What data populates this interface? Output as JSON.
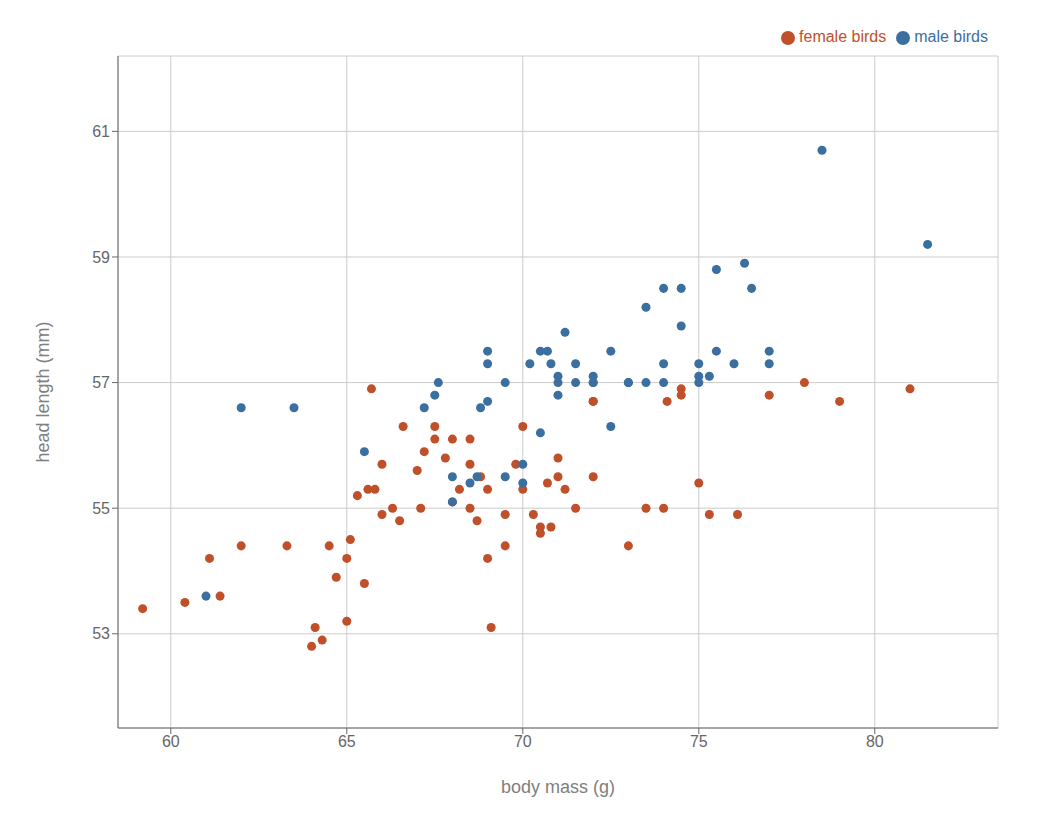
{
  "chart_data": {
    "type": "scatter",
    "xlabel": "body mass (g)",
    "ylabel": "head length (mm)",
    "series": [
      {
        "name": "female birds",
        "color": "#C0502A",
        "x": [
          59.2,
          60.4,
          61.1,
          61.4,
          62.0,
          63.3,
          64.0,
          64.1,
          64.3,
          64.5,
          64.7,
          65.0,
          65.0,
          65.1,
          65.3,
          65.5,
          65.6,
          65.7,
          65.8,
          66.0,
          66.0,
          66.3,
          66.5,
          66.6,
          67.0,
          67.1,
          67.2,
          67.5,
          67.5,
          67.8,
          68.0,
          68.0,
          68.2,
          68.5,
          68.5,
          68.5,
          68.7,
          68.8,
          69.0,
          69.0,
          69.1,
          69.5,
          69.5,
          69.8,
          70.0,
          70.0,
          70.3,
          70.5,
          70.5,
          70.7,
          70.8,
          71.0,
          71.0,
          71.2,
          71.5,
          72.0,
          72.0,
          72.0,
          73.0,
          73.5,
          74.0,
          74.1,
          74.5,
          74.5,
          75.0,
          75.3,
          76.1,
          77.0,
          78.0,
          79.0,
          81.0
        ],
        "values": [
          53.4,
          53.5,
          54.2,
          53.6,
          54.4,
          54.4,
          52.8,
          53.1,
          52.9,
          54.4,
          53.9,
          53.2,
          54.2,
          54.5,
          55.2,
          53.8,
          55.3,
          56.9,
          55.3,
          55.7,
          54.9,
          55.0,
          54.8,
          56.3,
          55.6,
          55.0,
          55.9,
          56.3,
          56.1,
          55.8,
          55.1,
          56.1,
          55.3,
          55.0,
          56.1,
          55.7,
          54.8,
          55.5,
          55.3,
          54.2,
          53.1,
          54.9,
          54.4,
          55.7,
          55.3,
          56.3,
          54.9,
          54.7,
          54.6,
          55.4,
          54.7,
          55.5,
          55.8,
          55.3,
          55.0,
          55.5,
          56.7,
          56.7,
          54.4,
          55.0,
          55.0,
          56.7,
          56.9,
          56.8,
          55.4,
          54.9,
          54.9,
          56.8,
          57.0,
          56.7,
          56.9
        ]
      },
      {
        "name": "male birds",
        "color": "#3B6FA0",
        "x": [
          61.0,
          62.0,
          63.5,
          65.5,
          67.2,
          67.5,
          67.6,
          68.0,
          68.0,
          68.5,
          68.7,
          68.8,
          69.0,
          69.0,
          69.0,
          69.5,
          69.5,
          70.0,
          70.0,
          70.2,
          70.5,
          70.5,
          70.7,
          70.8,
          71.0,
          71.0,
          71.0,
          71.2,
          71.5,
          71.5,
          72.0,
          72.0,
          72.0,
          72.5,
          72.5,
          73.0,
          73.0,
          73.5,
          73.5,
          74.0,
          74.0,
          74.0,
          74.5,
          74.5,
          75.0,
          75.0,
          75.0,
          75.3,
          75.5,
          75.5,
          76.0,
          76.3,
          76.5,
          77.0,
          77.0,
          78.5,
          81.5
        ],
        "values": [
          53.6,
          56.6,
          56.6,
          55.9,
          56.6,
          56.8,
          57.0,
          55.1,
          55.5,
          55.4,
          55.5,
          56.6,
          57.3,
          56.7,
          57.5,
          57.0,
          55.5,
          55.7,
          55.4,
          57.3,
          57.5,
          56.2,
          57.5,
          57.3,
          57.0,
          56.8,
          57.1,
          57.8,
          57.3,
          57.0,
          57.0,
          57.0,
          57.1,
          57.5,
          56.3,
          57.0,
          57.0,
          58.2,
          57.0,
          57.3,
          58.5,
          57.0,
          58.5,
          57.9,
          57.3,
          57.1,
          57.0,
          57.1,
          58.8,
          57.5,
          57.3,
          58.9,
          58.5,
          57.3,
          57.5,
          60.7,
          59.2
        ]
      }
    ],
    "xlim": [
      58.5,
      83.5
    ],
    "ylim": [
      51.5,
      62.2
    ],
    "xticks": [
      60,
      65,
      70,
      75,
      80
    ],
    "yticks": [
      53,
      55,
      57,
      59,
      61
    ],
    "grid": true,
    "legend": "upper right"
  }
}
